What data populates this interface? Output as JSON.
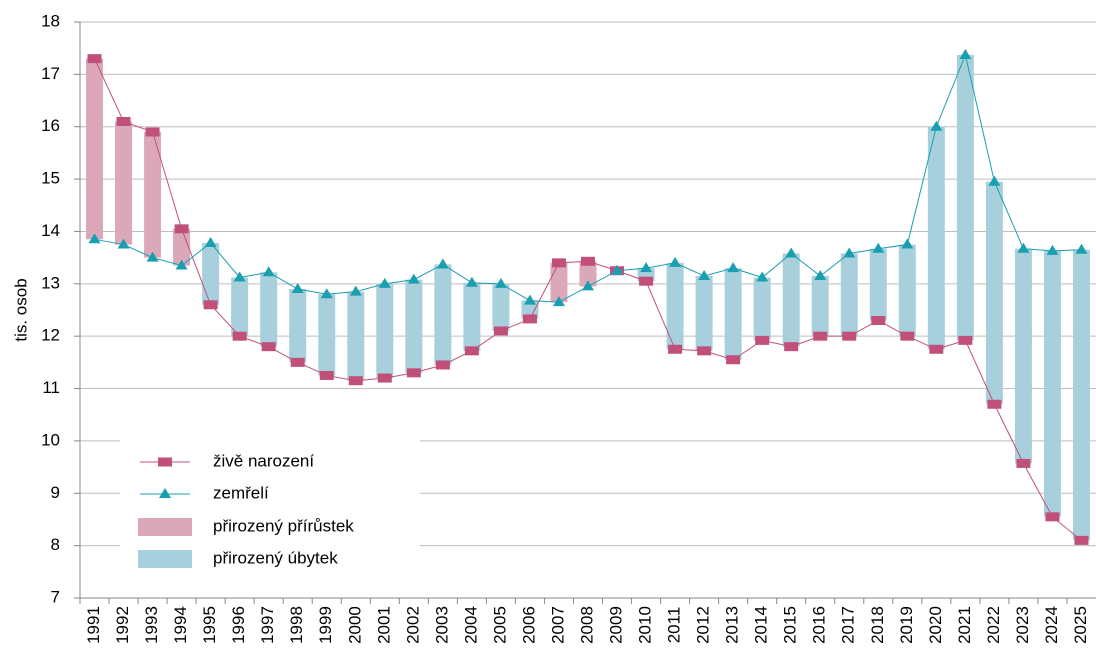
{
  "chart_data": {
    "type": "line",
    "y_label": "tis. osob",
    "categories": [
      "1991",
      "1992",
      "1993",
      "1994",
      "1995",
      "1996",
      "1997",
      "1998",
      "1999",
      "2000",
      "2001",
      "2002",
      "2003",
      "2004",
      "2005",
      "2006",
      "2007",
      "2008",
      "2009",
      "2010",
      "2011",
      "2012",
      "2013",
      "2014",
      "2015",
      "2016",
      "2017",
      "2018",
      "2019",
      "2020",
      "2021",
      "2022",
      "2023",
      "2024",
      "2025"
    ],
    "series": [
      {
        "name": "živě narození",
        "color": "#c0507a",
        "marker": "square",
        "values": [
          17.3,
          16.1,
          15.9,
          14.05,
          12.6,
          12.0,
          11.8,
          11.5,
          11.25,
          11.15,
          11.2,
          11.3,
          11.45,
          11.72,
          12.1,
          12.33,
          13.4,
          13.43,
          13.25,
          13.05,
          11.75,
          11.72,
          11.55,
          11.92,
          11.8,
          12.0,
          12.0,
          12.3,
          12.0,
          11.75,
          11.92,
          10.7,
          9.57,
          8.55,
          8.1
        ]
      },
      {
        "name": "zemřelí",
        "color": "#1a9fb0",
        "marker": "triangle",
        "values": [
          13.85,
          13.75,
          13.5,
          13.35,
          13.78,
          13.12,
          13.22,
          12.9,
          12.8,
          12.85,
          13.0,
          13.08,
          13.37,
          13.02,
          13.0,
          12.68,
          12.65,
          12.95,
          13.25,
          13.3,
          13.4,
          13.15,
          13.3,
          13.12,
          13.58,
          13.15,
          13.58,
          13.67,
          13.75,
          16.0,
          17.37,
          14.95,
          13.67,
          13.63,
          13.65
        ]
      }
    ],
    "bars": [
      {
        "name": "přirozený přírůstek",
        "color": "#dba8ba"
      },
      {
        "name": "přirozený úbytek",
        "color": "#a8d0dc"
      }
    ],
    "ylim": [
      7,
      18
    ],
    "yticks": [
      7,
      8,
      9,
      10,
      11,
      12,
      13,
      14,
      15,
      16,
      17,
      18
    ],
    "grid": true
  }
}
